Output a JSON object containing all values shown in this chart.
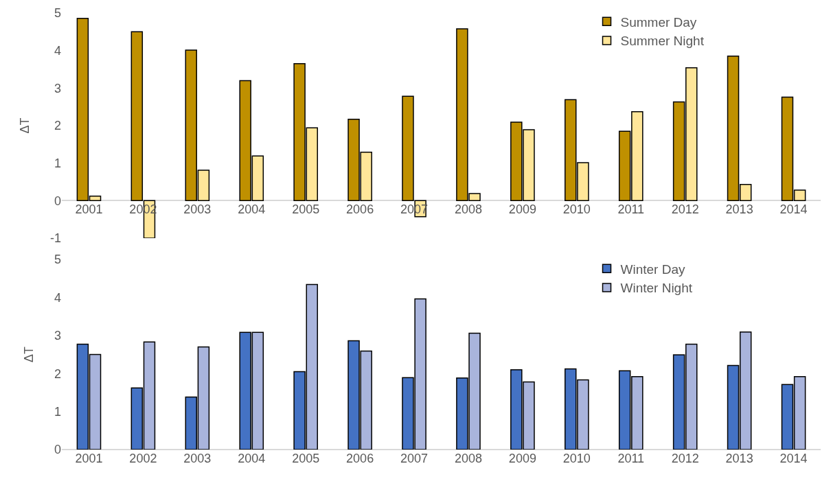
{
  "chart_data": [
    {
      "type": "bar",
      "ylabel": "ΔT",
      "categories": [
        "2001",
        "2002",
        "2003",
        "2004",
        "2005",
        "2006",
        "2007",
        "2008",
        "2009",
        "2010",
        "2011",
        "2012",
        "2013",
        "2014"
      ],
      "series": [
        {
          "name": "Summer Day",
          "color": "#bf9000",
          "values": [
            4.86,
            4.5,
            4.01,
            3.2,
            3.65,
            2.17,
            2.78,
            4.58,
            2.09,
            2.69,
            1.85,
            2.63,
            3.85,
            2.76
          ]
        },
        {
          "name": "Summer Night",
          "color": "#ffe699",
          "values": [
            0.12,
            -1.0,
            0.81,
            1.19,
            1.94,
            1.29,
            -0.43,
            0.19,
            1.89,
            1.01,
            2.37,
            3.54,
            0.43,
            0.28
          ]
        }
      ],
      "ylim": [
        -1,
        5
      ],
      "yticks": [
        -1,
        0,
        1,
        2,
        3,
        4,
        5
      ],
      "grid": false,
      "legend": "top right"
    },
    {
      "type": "bar",
      "ylabel": "ΔT",
      "categories": [
        "2001",
        "2002",
        "2003",
        "2004",
        "2005",
        "2006",
        "2007",
        "2008",
        "2009",
        "2010",
        "2011",
        "2012",
        "2013",
        "2014"
      ],
      "series": [
        {
          "name": "Winter Day",
          "color": "#4472c4",
          "values": [
            2.77,
            1.62,
            1.38,
            3.08,
            2.05,
            2.86,
            1.89,
            1.88,
            2.1,
            2.12,
            2.07,
            2.49,
            2.21,
            1.71
          ]
        },
        {
          "name": "Winter Night",
          "color": "#a9b4dc",
          "values": [
            2.5,
            2.83,
            2.7,
            3.08,
            4.34,
            2.59,
            3.96,
            3.06,
            1.78,
            1.83,
            1.92,
            2.77,
            3.09,
            1.92
          ]
        }
      ],
      "ylim": [
        0,
        5
      ],
      "yticks": [
        0,
        1,
        2,
        3,
        4,
        5
      ],
      "grid": false,
      "legend": "top right"
    }
  ]
}
